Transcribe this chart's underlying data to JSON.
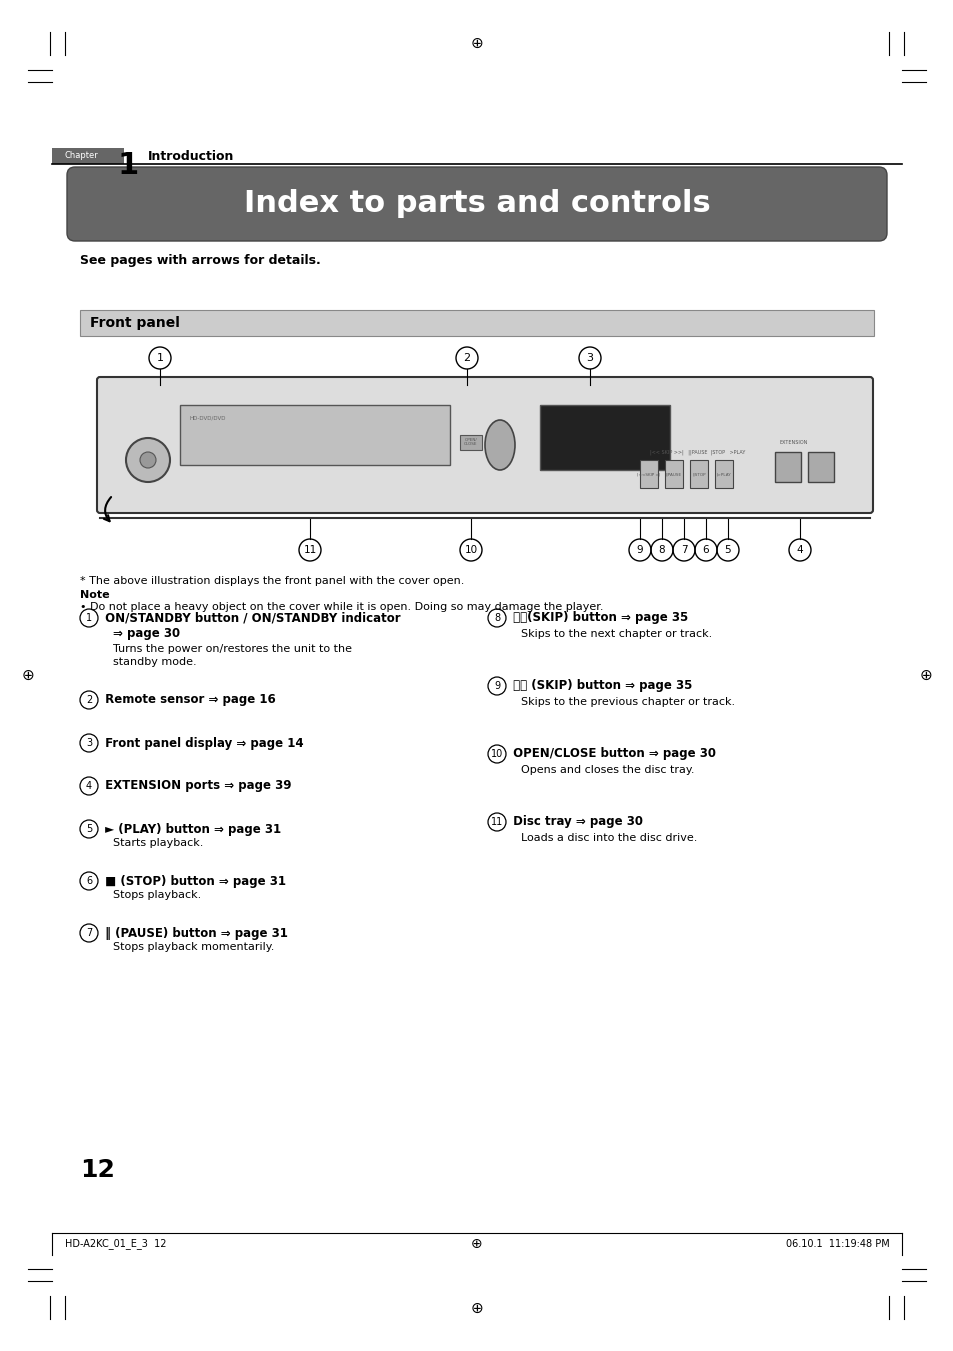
{
  "title": "Index to parts and controls",
  "subtitle": "See pages with arrows for details.",
  "section_title": "Front panel",
  "bg_color": "#ffffff",
  "chapter_label": "Chapter",
  "chapter_num": "1",
  "intro_text": "Introduction",
  "page_num": "12",
  "footer_left": "HD-A2KC_01_E_3  12",
  "footer_right": "06.10.1  11:19:48 PM",
  "note_star": "* The above illustration displays the front panel with the cover open.",
  "note_bold": "Note",
  "note_text": "• Do not place a heavy object on the cover while it is open. Doing so may damage the player."
}
